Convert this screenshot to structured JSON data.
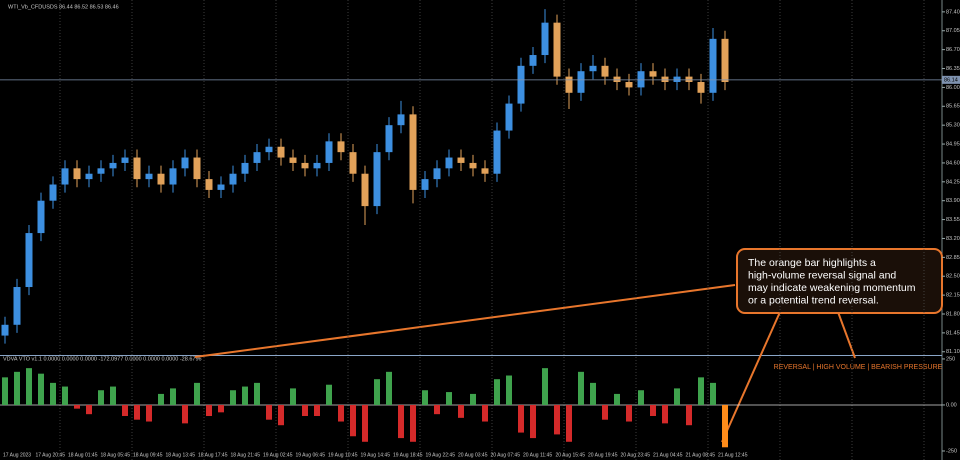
{
  "chart_data": [
    {
      "type": "candlestick",
      "title": "WTI_Vb_CFDUSDS 86.44 86.52 86.53 86.46",
      "series": {
        "open": [
          81.4,
          81.6,
          82.3,
          83.3,
          83.9,
          84.2,
          84.5,
          84.3,
          84.4,
          84.5,
          84.6,
          84.7,
          84.3,
          84.4,
          84.2,
          84.5,
          84.7,
          84.3,
          84.1,
          84.2,
          84.4,
          84.6,
          84.8,
          84.9,
          84.7,
          84.6,
          84.5,
          84.6,
          85.0,
          84.8,
          84.4,
          83.8,
          84.8,
          85.3,
          85.5,
          84.1,
          84.3,
          84.5,
          84.7,
          84.6,
          84.5,
          84.4,
          85.2,
          85.7,
          86.4,
          86.6,
          87.2,
          86.2,
          85.9,
          86.3,
          86.4,
          86.2,
          86.1,
          86.0,
          86.3,
          86.2,
          86.1,
          86.2,
          86.1,
          85.9,
          86.9
        ],
        "high": [
          81.75,
          82.45,
          83.45,
          84.05,
          84.35,
          84.65,
          84.65,
          84.55,
          84.65,
          84.75,
          84.85,
          84.85,
          84.55,
          84.55,
          84.65,
          84.85,
          84.85,
          84.45,
          84.35,
          84.55,
          84.75,
          84.95,
          85.05,
          85.05,
          84.85,
          84.75,
          84.75,
          85.15,
          85.15,
          84.95,
          84.55,
          84.95,
          85.45,
          85.75,
          85.65,
          84.45,
          84.65,
          84.85,
          84.85,
          84.75,
          84.65,
          85.35,
          85.85,
          86.55,
          86.75,
          87.45,
          87.35,
          86.35,
          86.45,
          86.6,
          86.55,
          86.35,
          86.25,
          86.45,
          86.45,
          86.35,
          86.35,
          86.35,
          86.25,
          87.1,
          87.05
        ],
        "low": [
          81.25,
          81.45,
          82.15,
          83.15,
          83.75,
          84.05,
          84.15,
          84.15,
          84.25,
          84.35,
          84.45,
          84.15,
          84.15,
          84.05,
          84.05,
          84.35,
          84.15,
          83.95,
          83.95,
          84.05,
          84.25,
          84.45,
          84.65,
          84.55,
          84.45,
          84.35,
          84.35,
          84.45,
          84.65,
          84.25,
          83.45,
          83.65,
          84.65,
          85.15,
          83.85,
          83.95,
          84.15,
          84.35,
          84.45,
          84.35,
          84.25,
          84.25,
          85.05,
          85.55,
          86.25,
          86.45,
          86.05,
          85.6,
          85.75,
          86.15,
          86.05,
          85.95,
          85.85,
          85.85,
          86.05,
          85.95,
          85.95,
          85.95,
          85.7,
          85.75,
          85.95
        ],
        "close": [
          81.6,
          82.3,
          83.3,
          83.9,
          84.2,
          84.5,
          84.3,
          84.4,
          84.5,
          84.6,
          84.7,
          84.3,
          84.4,
          84.2,
          84.5,
          84.7,
          84.3,
          84.1,
          84.2,
          84.4,
          84.6,
          84.8,
          84.9,
          84.7,
          84.6,
          84.5,
          84.6,
          85.0,
          84.8,
          84.4,
          83.8,
          84.8,
          85.3,
          85.5,
          84.1,
          84.3,
          84.5,
          84.7,
          84.6,
          84.5,
          84.4,
          85.2,
          85.7,
          86.4,
          86.6,
          87.2,
          86.2,
          85.9,
          86.3,
          86.4,
          86.2,
          86.1,
          86.0,
          86.3,
          86.2,
          86.1,
          86.2,
          86.1,
          85.9,
          86.9,
          86.1
        ]
      },
      "up_color": "#3d8fe0",
      "down_color": "#e2a25a",
      "ylim": [
        81.04,
        87.62
      ],
      "yticks": [
        {
          "value": 87.4,
          "label": "87.40"
        },
        {
          "value": 87.05,
          "label": "87.05"
        },
        {
          "value": 86.7,
          "label": "86.70"
        },
        {
          "value": 86.35,
          "label": "86.35"
        },
        {
          "value": 86.0,
          "label": "86.00"
        },
        {
          "value": 85.65,
          "label": "85.65"
        },
        {
          "value": 85.3,
          "label": "85.30"
        },
        {
          "value": 84.95,
          "label": "84.95"
        },
        {
          "value": 84.6,
          "label": "84.60"
        },
        {
          "value": 84.25,
          "label": "84.25"
        },
        {
          "value": 83.9,
          "label": "83.90"
        },
        {
          "value": 83.55,
          "label": "83.55"
        },
        {
          "value": 83.2,
          "label": "83.20"
        },
        {
          "value": 82.85,
          "label": "82.85"
        },
        {
          "value": 82.5,
          "label": "82.50"
        },
        {
          "value": 82.15,
          "label": "82.15"
        },
        {
          "value": 81.8,
          "label": "81.80"
        },
        {
          "value": 81.45,
          "label": "81.45"
        },
        {
          "value": 81.1,
          "label": "81.10"
        }
      ],
      "last_price": 86.14
    },
    {
      "type": "bar",
      "title": "VDVA VTO v1.1 0.0000 0.0000 0.0000 -172.0977 0.0000 0.0000 0.0000 -28.6796",
      "values": [
        150,
        180,
        200,
        170,
        120,
        100,
        -20,
        -50,
        80,
        100,
        -60,
        -80,
        -90,
        60,
        90,
        -100,
        120,
        -60,
        -40,
        80,
        100,
        120,
        -80,
        -110,
        90,
        -60,
        -60,
        110,
        -90,
        -170,
        -200,
        140,
        180,
        -180,
        -200,
        80,
        -50,
        70,
        -70,
        60,
        -90,
        140,
        160,
        -150,
        -180,
        200,
        -160,
        -200,
        180,
        120,
        -80,
        60,
        -90,
        80,
        -60,
        -100,
        90,
        -110,
        150,
        120,
        -230
      ],
      "colors": [
        "#3fa34d",
        "#3fa34d",
        "#3fa34d",
        "#3fa34d",
        "#3fa34d",
        "#3fa34d",
        "#d42a2a",
        "#d42a2a",
        "#3fa34d",
        "#3fa34d",
        "#d42a2a",
        "#d42a2a",
        "#d42a2a",
        "#3fa34d",
        "#3fa34d",
        "#d42a2a",
        "#3fa34d",
        "#d42a2a",
        "#d42a2a",
        "#3fa34d",
        "#3fa34d",
        "#3fa34d",
        "#d42a2a",
        "#d42a2a",
        "#3fa34d",
        "#d42a2a",
        "#d42a2a",
        "#3fa34d",
        "#d42a2a",
        "#d42a2a",
        "#d42a2a",
        "#3fa34d",
        "#3fa34d",
        "#d42a2a",
        "#d42a2a",
        "#3fa34d",
        "#d42a2a",
        "#3fa34d",
        "#d42a2a",
        "#3fa34d",
        "#d42a2a",
        "#3fa34d",
        "#3fa34d",
        "#d42a2a",
        "#d42a2a",
        "#3fa34d",
        "#d42a2a",
        "#d42a2a",
        "#3fa34d",
        "#3fa34d",
        "#d42a2a",
        "#3fa34d",
        "#d42a2a",
        "#3fa34d",
        "#d42a2a",
        "#d42a2a",
        "#3fa34d",
        "#d42a2a",
        "#3fa34d",
        "#3fa34d",
        "#ff8c1a"
      ],
      "ylim": [
        -299,
        266
      ],
      "yticks": [
        250,
        {
          "value": 0,
          "label": "0.00"
        },
        -250
      ],
      "time_labels": [
        "17 Aug 2023",
        "17 Aug 20:45",
        "18 Aug 01:45",
        "18 Aug 05:45",
        "18 Aug 09:45",
        "18 Aug 13:45",
        "18 Aug 17:45",
        "18 Aug 21:45",
        "19 Aug 02:45",
        "19 Aug 06:45",
        "19 Aug 10:45",
        "19 Aug 14:45",
        "19 Aug 18:45",
        "19 Aug 22:45",
        "20 Aug 03:45",
        "20 Aug 07:45",
        "20 Aug 11:45",
        "20 Aug 15:45",
        "20 Aug 19:45",
        "20 Aug 23:45",
        "21 Aug 04:45",
        "21 Aug 08:45",
        "21 Aug 12:45"
      ],
      "callout_lines": [
        "The orange bar highlights a",
        "high-volume reversal signal and",
        "may indicate weakening momentum",
        "or a potential trend reversal."
      ],
      "signal_label": "REVERSAL | HIGH VOLUME | BEARISH PRESSURE"
    }
  ]
}
